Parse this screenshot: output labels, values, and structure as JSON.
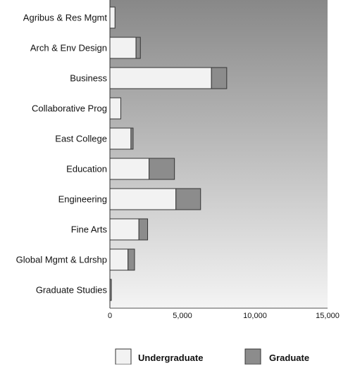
{
  "chart_data": {
    "type": "bar",
    "orientation": "horizontal",
    "stacked": true,
    "categories": [
      "Agribus & Res Mgmt",
      "Arch & Env Design",
      "Business",
      "Collaborative Prog",
      "East College",
      "Education",
      "Engineering",
      "Fine Arts",
      "Global Mgmt & Ldrshp",
      "Graduate Studies"
    ],
    "series": [
      {
        "name": "Undergraduate",
        "color": "#f2f2f2",
        "values": [
          350,
          1800,
          7000,
          750,
          1450,
          2700,
          4550,
          2000,
          1250,
          0
        ]
      },
      {
        "name": "Graduate",
        "color": "#8c8c8c",
        "values": [
          0,
          300,
          1050,
          0,
          150,
          1750,
          1700,
          600,
          450,
          100
        ]
      }
    ],
    "x_ticks": [
      "0",
      "5,000",
      "10,000",
      "15,000"
    ],
    "xlim": [
      0,
      15000
    ],
    "grid": false,
    "legend_position": "bottom",
    "colors": {
      "plot_background_top": "#888888",
      "plot_background_bottom": "#f4f4f4",
      "bar_border": "#333333"
    }
  }
}
